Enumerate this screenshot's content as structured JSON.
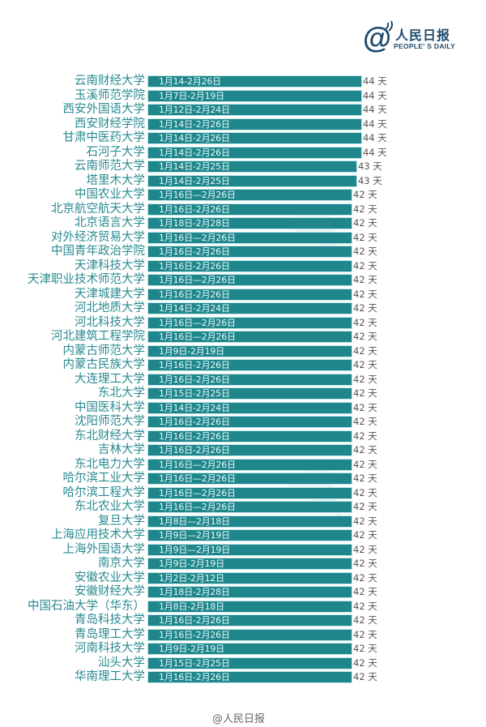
{
  "header": {
    "logo_at": "@",
    "logo_cn": "人民日报",
    "logo_en": "PEOPLE' S DAILY"
  },
  "footer": {
    "credit": "@人民日报"
  },
  "colors": {
    "bar": "#1f878c",
    "label": "#2a8a90",
    "logo": "#1e4a6b"
  },
  "chart_data": {
    "type": "bar",
    "orientation": "horizontal",
    "title": "",
    "xlabel": "",
    "ylabel": "",
    "unit": "天",
    "grid": false,
    "legend": null,
    "categories": [
      "云南财经大学",
      "玉溪师范学院",
      "西安外国语大学",
      "西安财经学院",
      "甘肃中医药大学",
      "石河子大学",
      "云南师范大学",
      "塔里木大学",
      "中国农业大学",
      "北京航空航天大学",
      "北京语言大学",
      "对外经济贸易大学",
      "中国青年政治学院",
      "天津科技大学",
      "天津职业技术师范大学",
      "天津城建大学",
      "河北地质大学",
      "河北科技大学",
      "河北建筑工程学院",
      "内蒙古师范大学",
      "内蒙古民族大学",
      "大连理工大学",
      "东北大学",
      "中国医科大学",
      "沈阳师范大学",
      "东北财经大学",
      "吉林大学",
      "东北电力大学",
      "哈尔滨工业大学",
      "哈尔滨工程大学",
      "东北农业大学",
      "复旦大学",
      "上海应用技术大学",
      "上海外国语大学",
      "南京大学",
      "安徽农业大学",
      "安徽财经大学",
      "中国石油大学（华东）",
      "青岛科技大学",
      "青岛理工大学",
      "河南科技大学",
      "汕头大学",
      "华南理工大学"
    ],
    "ranges": [
      "1月14-2月26日",
      "1月7日-2月19日",
      "1月12日-2月24日",
      "1月14日-2月26日",
      "1月14日-2月26日",
      "1月14日-2月26日",
      "1月14日-2月25日",
      "1月14日-2月25日",
      "1月16日—2月26日",
      "1月16日-2月26日",
      "1月18日-2月28日",
      "1月16日—2月26日",
      "1月16日-2月26日",
      "1月16日-2月26日",
      "1月16日—2月26日",
      "1月16日-2月26日",
      "1月14日-2月24日",
      "1月16日—2月26日",
      "1月16日—2月26日",
      "1月9日-2月19日",
      "1月16日-2月26日",
      "1月16日-2月26日",
      "1月15日-2月25日",
      "1月14日-2月24日",
      "1月16日-2月26日",
      "1月16日-2月26日",
      "1月16日-2月26日",
      "1月16日—2月26日",
      "1月16日—2月26日",
      "1月16日—2月26日",
      "1月16日—2月26日",
      "1月8日—2月18日",
      "1月9日—2月19日",
      "1月9日—2月19日",
      "1月9日-2月19日",
      "1月2日-2月12日",
      "1月18日-2月28日",
      "1月8日-2月18日",
      "1月16日-2月26日",
      "1月16日-2月26日",
      "1月9日-2月19日",
      "1月15日-2月25日",
      "1月16日-2月26日"
    ],
    "values": [
      44,
      44,
      44,
      44,
      44,
      44,
      43,
      43,
      42,
      42,
      42,
      42,
      42,
      42,
      42,
      42,
      42,
      42,
      42,
      42,
      42,
      42,
      42,
      42,
      42,
      42,
      42,
      42,
      42,
      42,
      42,
      42,
      42,
      42,
      42,
      42,
      42,
      42,
      42,
      42,
      42,
      42,
      42
    ],
    "value_labels": [
      "44 天",
      "44 天",
      "44 天",
      "44 天",
      "44 天",
      "44 天",
      "43 天",
      "43 天",
      "42 天",
      "42 天",
      "42 天",
      "42 天",
      "42 天",
      "42 天",
      "42 天",
      "42 天",
      "42 天",
      "42 天",
      "42 天",
      "42 天",
      "42 天",
      "42 天",
      "42 天",
      "42 天",
      "42 天",
      "42 天",
      "42 天",
      "42 天",
      "42 天",
      "42 天",
      "42 天",
      "42 天",
      "42 天",
      "42 天",
      "42 天",
      "42 天",
      "42 天",
      "42 天",
      "42 天",
      "42 天",
      "42 天",
      "42 天",
      "42 天"
    ],
    "xlim": [
      0,
      44
    ]
  }
}
